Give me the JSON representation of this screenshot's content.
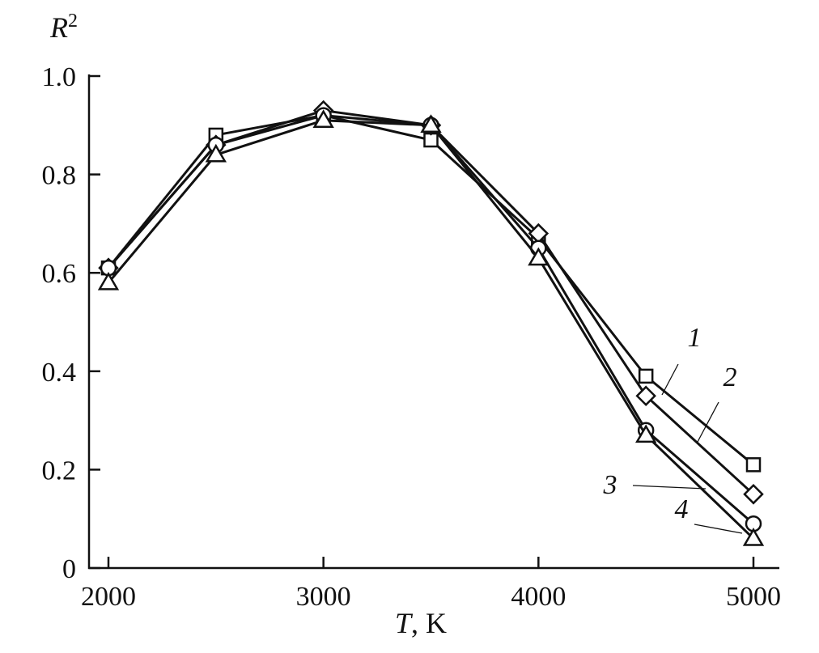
{
  "chart_data": {
    "type": "line",
    "title": "",
    "xlabel": {
      "var": "T",
      "unit": ", K"
    },
    "ylabel": {
      "var": "R",
      "sup": "2"
    },
    "xlim": [
      2000,
      5000
    ],
    "ylim": [
      0,
      1.0
    ],
    "x": [
      2000,
      2500,
      3000,
      3500,
      4000,
      4500,
      5000
    ],
    "x_tick_labels": [
      "2000",
      "3000",
      "4000",
      "5000"
    ],
    "x_tick_values": [
      2000,
      3000,
      4000,
      5000
    ],
    "y_tick_labels": [
      "0",
      "0.2",
      "0.4",
      "0.6",
      "0.8",
      "1.0"
    ],
    "y_tick_values": [
      0,
      0.2,
      0.4,
      0.6,
      0.8,
      1.0
    ],
    "grid": false,
    "legend": "labels at line ends with leader lines",
    "series": [
      {
        "name": "1",
        "marker": "square",
        "values": [
          0.61,
          0.88,
          0.92,
          0.87,
          0.67,
          0.39,
          0.21
        ]
      },
      {
        "name": "2",
        "marker": "diamond",
        "values": [
          0.61,
          0.86,
          0.93,
          0.9,
          0.68,
          0.35,
          0.15
        ]
      },
      {
        "name": "3",
        "marker": "circle",
        "values": [
          0.61,
          0.86,
          0.92,
          0.9,
          0.65,
          0.28,
          0.09
        ]
      },
      {
        "name": "4",
        "marker": "triangle",
        "values": [
          0.58,
          0.84,
          0.91,
          0.9,
          0.63,
          0.27,
          0.06
        ]
      }
    ]
  }
}
